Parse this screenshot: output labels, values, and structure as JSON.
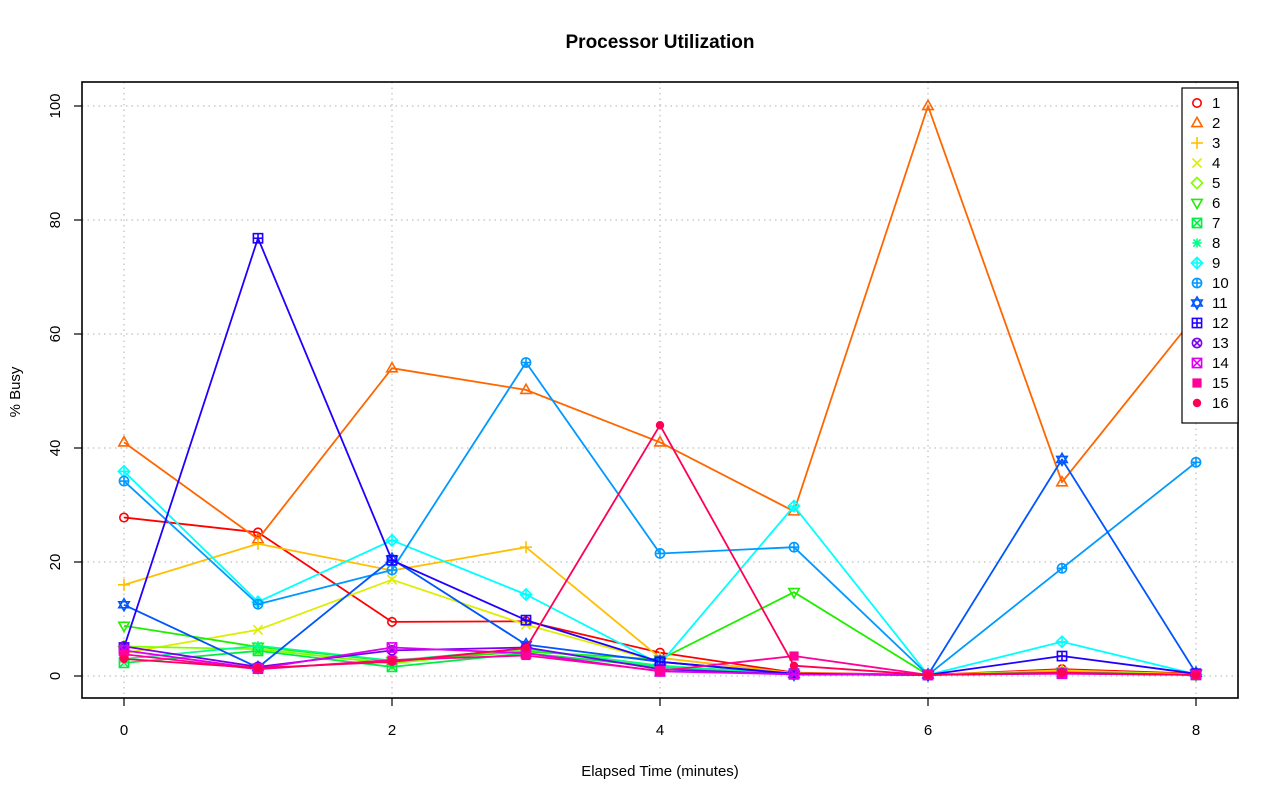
{
  "chart_data": {
    "type": "line",
    "title": "Processor Utilization",
    "xlabel": "Elapsed Time (minutes)",
    "ylabel": "% Busy",
    "xlim": [
      0,
      8
    ],
    "ylim": [
      0,
      100
    ],
    "xticks": [
      "0",
      "2",
      "4",
      "6",
      "8"
    ],
    "yticks": [
      "0",
      "20",
      "40",
      "60",
      "80",
      "100"
    ],
    "grid": true,
    "legend_position": "top-right",
    "x": [
      0,
      1,
      2,
      3,
      4,
      5,
      6,
      7,
      8
    ],
    "series": [
      {
        "name": "1",
        "color": "#ff0000",
        "symbol": "circle",
        "values": [
          27.8,
          25.2,
          9.5,
          9.6,
          4.1,
          0.6,
          0.2,
          1.2,
          0.4
        ]
      },
      {
        "name": "2",
        "color": "#ff6600",
        "symbol": "triangle",
        "values": [
          41.0,
          24.0,
          54.0,
          50.2,
          41.0,
          28.9,
          100.0,
          34.0,
          63.3
        ]
      },
      {
        "name": "3",
        "color": "#ffbf00",
        "symbol": "plus",
        "values": [
          16.0,
          23.2,
          18.5,
          22.6,
          3.2,
          0.5,
          0.2,
          1.0,
          0.3
        ]
      },
      {
        "name": "4",
        "color": "#ddee00",
        "symbol": "cross",
        "values": [
          4.0,
          8.1,
          16.9,
          9.0,
          2.5,
          0.4,
          0.2,
          0.8,
          0.3
        ]
      },
      {
        "name": "5",
        "color": "#80ff00",
        "symbol": "diamond",
        "values": [
          5.2,
          4.7,
          2.2,
          4.7,
          1.8,
          0.3,
          0.2,
          0.6,
          0.2
        ]
      },
      {
        "name": "6",
        "color": "#20ee00",
        "symbol": "triangle-down",
        "values": [
          8.8,
          5.1,
          2.6,
          4.3,
          2.9,
          14.7,
          0.2,
          0.7,
          0.2
        ]
      },
      {
        "name": "7",
        "color": "#00ee44",
        "symbol": "square-x",
        "values": [
          2.3,
          4.4,
          1.6,
          4.0,
          1.6,
          0.3,
          0.2,
          0.6,
          0.2
        ]
      },
      {
        "name": "8",
        "color": "#00ff88",
        "symbol": "asterisk",
        "values": [
          3.0,
          5.3,
          2.7,
          4.8,
          1.8,
          0.3,
          0.2,
          0.6,
          0.2
        ]
      },
      {
        "name": "9",
        "color": "#00ffff",
        "symbol": "diamond-plus",
        "values": [
          35.9,
          13.0,
          23.8,
          14.3,
          2.1,
          29.8,
          0.2,
          6.0,
          0.3
        ]
      },
      {
        "name": "10",
        "color": "#0099ff",
        "symbol": "circle-plus",
        "values": [
          34.2,
          12.6,
          18.6,
          55.0,
          21.5,
          22.6,
          0.2,
          18.9,
          37.5
        ]
      },
      {
        "name": "11",
        "color": "#0055ff",
        "symbol": "star-of-david",
        "values": [
          12.5,
          1.5,
          20.5,
          5.5,
          2.5,
          0.3,
          0.2,
          38.0,
          0.5
        ]
      },
      {
        "name": "12",
        "color": "#2200ff",
        "symbol": "square-plus",
        "values": [
          5.0,
          76.8,
          20.3,
          9.8,
          2.5,
          0.4,
          0.2,
          3.5,
          0.4
        ]
      },
      {
        "name": "13",
        "color": "#7700ee",
        "symbol": "circle-x",
        "values": [
          5.2,
          1.6,
          4.5,
          5.0,
          1.2,
          0.3,
          0.2,
          0.5,
          0.2
        ]
      },
      {
        "name": "14",
        "color": "#dd00ee",
        "symbol": "square-x",
        "values": [
          4.5,
          1.3,
          5.0,
          4.0,
          0.8,
          0.3,
          0.2,
          0.4,
          0.2
        ]
      },
      {
        "name": "15",
        "color": "#ff0099",
        "symbol": "square",
        "values": [
          3.8,
          1.2,
          2.8,
          3.6,
          0.9,
          3.5,
          0.2,
          0.5,
          0.2
        ]
      },
      {
        "name": "16",
        "color": "#ff0055",
        "symbol": "dot",
        "values": [
          3.0,
          1.4,
          2.5,
          4.9,
          44.0,
          1.8,
          0.2,
          0.6,
          0.2
        ]
      }
    ]
  }
}
